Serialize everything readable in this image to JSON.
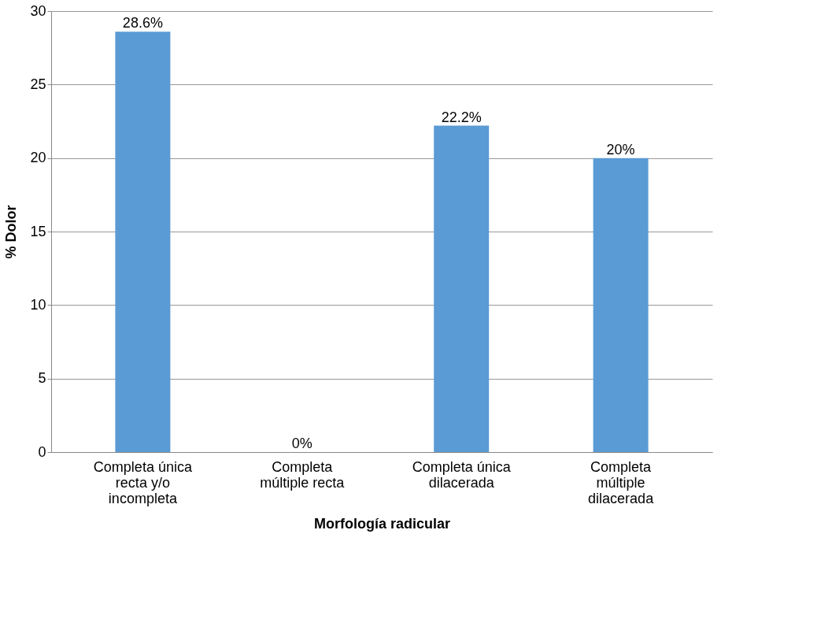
{
  "chart_data": {
    "type": "bar",
    "xlabel": "Morfología radicular",
    "ylabel": "% Dolor",
    "categories": [
      "Completa única recta y/o incompleta",
      "Completa múltiple recta",
      "Completa única dilacerada",
      "Completa múltiple dilacerada"
    ],
    "values": [
      28.6,
      0,
      22.2,
      20
    ],
    "value_labels": [
      "28.6%",
      "0%",
      "22.2%",
      "20%"
    ],
    "color": "#5b9bd5",
    "ylim": [
      0,
      30
    ],
    "yticks": [
      0,
      5,
      10,
      15,
      20,
      25,
      30
    ],
    "grid": "y"
  }
}
